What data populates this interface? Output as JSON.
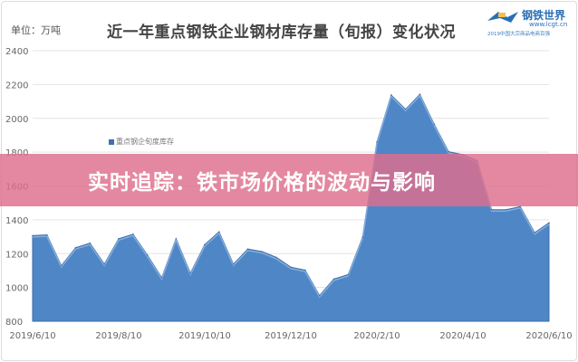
{
  "header": {
    "unit": "单位：万吨",
    "title": "近一年重点钢铁企业钢材库存量（旬报）变化状况"
  },
  "logo": {
    "name": "钢铁世界",
    "url": "www.lcgt.cn",
    "subtitle": "2019中国大宗商品电商百强"
  },
  "banner": {
    "text": "实时追踪：铁市场价格的波动与影响"
  },
  "chart_data": {
    "type": "area",
    "title": "近一年重点钢铁企业钢材库存量（旬报）变化状况",
    "ylabel": "单位：万吨",
    "ylim": [
      800,
      2400
    ],
    "yticks": [
      800,
      1000,
      1200,
      1400,
      1600,
      1800,
      2000,
      2200,
      2400
    ],
    "xtick_labels": [
      "2019/6/10",
      "2019/8/10",
      "2019/10/10",
      "2019/12/10",
      "2020/2/10",
      "2020/4/10",
      "2020/6/10"
    ],
    "grid": true,
    "legend_position": "upper-left",
    "color": "#4f86c6",
    "series": [
      {
        "name": "重点钢企旬度库存",
        "values": [
          1306,
          1311,
          1129,
          1235,
          1262,
          1138,
          1288,
          1315,
          1191,
          1058,
          1288,
          1085,
          1253,
          1329,
          1138,
          1227,
          1212,
          1177,
          1120,
          1103,
          952,
          1050,
          1076,
          1297,
          1860,
          2138,
          2054,
          2142,
          1965,
          1803,
          1785,
          1750,
          1460,
          1460,
          1478,
          1324,
          1382
        ]
      }
    ]
  }
}
